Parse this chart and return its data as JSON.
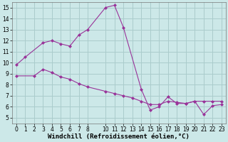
{
  "background_color": "#cce8e8",
  "grid_color": "#aacccc",
  "line_color": "#993399",
  "marker_color": "#993399",
  "xlabel": "Windchill (Refroidissement éolien,°C)",
  "xlim": [
    -0.5,
    23.5
  ],
  "ylim": [
    4.5,
    15.5
  ],
  "xticks": [
    0,
    1,
    2,
    3,
    4,
    5,
    6,
    7,
    8,
    10,
    11,
    12,
    13,
    14,
    15,
    16,
    17,
    18,
    19,
    20,
    21,
    22,
    23
  ],
  "yticks": [
    5,
    6,
    7,
    8,
    9,
    10,
    11,
    12,
    13,
    14,
    15
  ],
  "series1_x": [
    0,
    1,
    3,
    4,
    5,
    6,
    7,
    8,
    10,
    11,
    12,
    14,
    15,
    16,
    17,
    18,
    19,
    20,
    21,
    22,
    23
  ],
  "series1_y": [
    9.8,
    10.5,
    11.8,
    12.0,
    11.7,
    11.5,
    12.5,
    13.0,
    15.0,
    15.2,
    13.2,
    7.6,
    5.7,
    6.0,
    6.9,
    6.3,
    6.3,
    6.5,
    5.3,
    6.1,
    6.2
  ],
  "series2_x": [
    0,
    2,
    3,
    4,
    5,
    6,
    7,
    8,
    10,
    11,
    12,
    13,
    14,
    15,
    16,
    17,
    18,
    19,
    20,
    21,
    22,
    23
  ],
  "series2_y": [
    8.8,
    8.8,
    9.4,
    9.1,
    8.7,
    8.5,
    8.1,
    7.8,
    7.4,
    7.2,
    7.0,
    6.8,
    6.5,
    6.2,
    6.2,
    6.5,
    6.4,
    6.3,
    6.5,
    6.5,
    6.5,
    6.5
  ],
  "tick_fontsize": 5.5,
  "label_fontsize": 6.5,
  "label_fontweight": "bold"
}
